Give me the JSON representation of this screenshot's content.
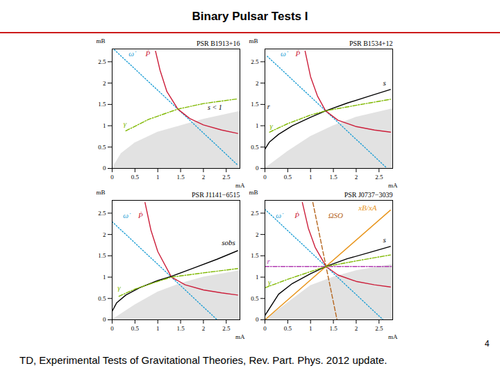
{
  "page": {
    "title": "Binary Pulsar Tests I",
    "footer": "TD, Experimental Tests of Gravitational Theories, Rev. Part. Phys. 2012 update.",
    "page_number": 4
  },
  "chart_data": [
    {
      "type": "line",
      "title": "PSR B1913+16",
      "x_label": "mA",
      "y_label": "mB",
      "xlim": [
        0,
        2.8
      ],
      "ylim": [
        0,
        2.8
      ],
      "xticks": [
        0,
        0.5,
        1,
        1.5,
        2,
        2.5
      ],
      "yticks": [
        0,
        0.5,
        1,
        1.5,
        2,
        2.5
      ],
      "shaded": {
        "x": [
          0,
          0.2,
          0.5,
          1,
          1.5,
          2,
          2.8
        ],
        "y": [
          0,
          0.35,
          0.6,
          0.85,
          1.0,
          1.15,
          1.34
        ]
      },
      "series": [
        {
          "name": "ω̇",
          "color": "#1f9fd5",
          "line_style": "dotted",
          "x": [
            0.05,
            2.75
          ],
          "values": [
            2.78,
            0.08
          ],
          "label_at": [
            0.42,
            2.68
          ]
        },
        {
          "name": "Ṗ",
          "color": "#cc1e3a",
          "line_style": "solid",
          "x": [
            0.95,
            1.05,
            1.2,
            1.44,
            1.7,
            2.0,
            2.4,
            2.75
          ],
          "values": [
            2.75,
            2.3,
            1.8,
            1.39,
            1.17,
            1.02,
            0.9,
            0.82
          ],
          "label_at": [
            0.78,
            2.68
          ]
        },
        {
          "name": "γ",
          "color": "#7fb800",
          "line_style": "dashdot",
          "x": [
            0.3,
            0.8,
            1.44,
            2.0,
            2.75
          ],
          "values": [
            0.88,
            1.15,
            1.39,
            1.52,
            1.63
          ],
          "label_at": [
            0.28,
            1.05
          ]
        }
      ],
      "annotations": [
        {
          "text": "s < 1",
          "x": 2.25,
          "y": 1.42,
          "color": "#000000"
        }
      ]
    },
    {
      "type": "line",
      "title": "PSR B1534+12",
      "x_label": "mA",
      "y_label": "mB",
      "xlim": [
        0,
        2.8
      ],
      "ylim": [
        0,
        2.8
      ],
      "xticks": [
        0,
        0.5,
        1,
        1.5,
        2,
        2.5
      ],
      "yticks": [
        0,
        0.5,
        1,
        1.5,
        2,
        2.5
      ],
      "shaded": {
        "x": [
          0,
          0.5,
          1,
          1.5,
          2,
          2.8
        ],
        "y": [
          0,
          0.4,
          0.75,
          1.0,
          1.2,
          1.4
        ]
      },
      "series": [
        {
          "name": "ω̇",
          "color": "#1f9fd5",
          "line_style": "dotted",
          "x": [
            0.05,
            2.65
          ],
          "values": [
            2.63,
            0.03
          ],
          "label_at": [
            0.4,
            2.68
          ]
        },
        {
          "name": "Ṗ",
          "color": "#cc1e3a",
          "line_style": "solid",
          "x": [
            0.88,
            1.0,
            1.15,
            1.33,
            1.6,
            2.0,
            2.4,
            2.75
          ],
          "values": [
            2.75,
            2.15,
            1.7,
            1.35,
            1.13,
            0.98,
            0.9,
            0.85
          ],
          "label_at": [
            0.72,
            2.68
          ]
        },
        {
          "name": "s",
          "color": "#000000",
          "line_style": "solid",
          "x": [
            0,
            0.1,
            0.3,
            0.6,
            1.0,
            1.33,
            1.8,
            2.3,
            2.75
          ],
          "values": [
            0.45,
            0.62,
            0.8,
            1.0,
            1.2,
            1.35,
            1.53,
            1.7,
            1.85
          ],
          "label_at": [
            2.62,
            2.0
          ]
        },
        {
          "name": "γ",
          "color": "#7fb800",
          "line_style": "dashdot",
          "x": [
            0.1,
            0.5,
            1.0,
            1.33,
            2.0,
            2.75
          ],
          "values": [
            0.85,
            1.05,
            1.25,
            1.35,
            1.48,
            1.62
          ],
          "label_at": [
            0.14,
            1.0
          ]
        }
      ],
      "annotations": [
        {
          "text": "r",
          "x": 0.08,
          "y": 1.45,
          "color": "#000000"
        }
      ]
    },
    {
      "type": "line",
      "title": "PSR J1141−6515",
      "x_label": "mA",
      "y_label": "mB",
      "xlim": [
        0,
        2.8
      ],
      "ylim": [
        0,
        2.8
      ],
      "xticks": [
        0,
        0.5,
        1,
        1.5,
        2,
        2.5
      ],
      "yticks": [
        0,
        0.5,
        1,
        1.5,
        2,
        2.5
      ],
      "shaded": {
        "x": [
          0,
          0.5,
          1,
          1.5,
          2,
          2.8
        ],
        "y": [
          0,
          0.35,
          0.65,
          0.85,
          1.0,
          1.15
        ]
      },
      "series": [
        {
          "name": "ω̇",
          "color": "#1f9fd5",
          "line_style": "dotted",
          "x": [
            0.0,
            2.3
          ],
          "values": [
            2.3,
            0.0
          ],
          "label_at": [
            0.3,
            2.45
          ]
        },
        {
          "name": "Ṗ",
          "color": "#cc1e3a",
          "line_style": "solid",
          "x": [
            0.72,
            0.85,
            1.0,
            1.3,
            1.6,
            2.0,
            2.4,
            2.75
          ],
          "values": [
            2.75,
            2.1,
            1.6,
            1.0,
            0.82,
            0.7,
            0.63,
            0.58
          ],
          "label_at": [
            0.62,
            2.45
          ]
        },
        {
          "name": "sobs",
          "color": "#000000",
          "line_style": "solid",
          "x": [
            0,
            0.1,
            0.3,
            0.6,
            1.0,
            1.3,
            1.8,
            2.3,
            2.75
          ],
          "values": [
            0.2,
            0.4,
            0.58,
            0.75,
            0.92,
            1.02,
            1.22,
            1.42,
            1.62
          ],
          "label_at": [
            2.55,
            1.8
          ]
        },
        {
          "name": "γ",
          "color": "#7fb800",
          "line_style": "dashdot",
          "x": [
            0.15,
            0.5,
            1.0,
            1.3,
            2.0,
            2.75
          ],
          "values": [
            0.55,
            0.72,
            0.9,
            1.0,
            1.1,
            1.2
          ],
          "label_at": [
            0.15,
            0.75
          ]
        }
      ],
      "annotations": []
    },
    {
      "type": "line",
      "title": "PSR J0737−3039",
      "x_label": "mA",
      "y_label": "mB",
      "xlim": [
        0,
        2.8
      ],
      "ylim": [
        0,
        2.8
      ],
      "xticks": [
        0,
        0.5,
        1,
        1.5,
        2,
        2.5
      ],
      "yticks": [
        0,
        0.5,
        1,
        1.5,
        2,
        2.5
      ],
      "shaded": {
        "x": [
          0,
          0.5,
          1,
          1.5,
          2,
          2.8
        ],
        "y": [
          0,
          0.4,
          0.8,
          1.0,
          1.15,
          1.3
        ]
      },
      "series": [
        {
          "name": "ω̇",
          "color": "#1f9fd5",
          "line_style": "dotted",
          "x": [
            0.0,
            2.59
          ],
          "values": [
            2.59,
            0.0
          ],
          "label_at": [
            0.3,
            2.45
          ]
        },
        {
          "name": "Ṗ",
          "color": "#cc1e3a",
          "line_style": "solid",
          "x": [
            0.82,
            0.95,
            1.1,
            1.34,
            1.6,
            2.0,
            2.4,
            2.75
          ],
          "values": [
            2.75,
            2.15,
            1.7,
            1.25,
            1.05,
            0.9,
            0.82,
            0.77
          ],
          "label_at": [
            0.7,
            2.45
          ]
        },
        {
          "name": "ΩSO",
          "color": "#b5651d",
          "line_style": "dashed",
          "x": [
            1.05,
            1.58
          ],
          "values": [
            2.75,
            0.0
          ],
          "label_at": [
            1.55,
            2.45
          ]
        },
        {
          "name": "xB/xA",
          "color": "#e8941a",
          "line_style": "solid",
          "x": [
            0,
            2.75
          ],
          "values": [
            0,
            2.57
          ],
          "label_at": [
            2.25,
            2.62
          ]
        },
        {
          "name": "s",
          "color": "#000000",
          "line_style": "solid",
          "x": [
            0,
            0.3,
            0.6,
            1.0,
            1.34,
            1.8,
            2.3,
            2.75
          ],
          "values": [
            0.1,
            0.6,
            0.85,
            1.08,
            1.25,
            1.43,
            1.58,
            1.72
          ],
          "label_at": [
            2.62,
            1.88
          ]
        },
        {
          "name": "r",
          "color": "#b03ab0",
          "line_style": "dashdot",
          "x": [
            0,
            2.8
          ],
          "values": [
            1.25,
            1.25
          ],
          "label_at": [
            0.08,
            1.36
          ]
        },
        {
          "name": "γ",
          "color": "#7fb800",
          "line_style": "dashdot",
          "x": [
            0,
            0.5,
            1.0,
            1.34,
            2.0,
            2.75
          ],
          "values": [
            0.75,
            0.95,
            1.13,
            1.25,
            1.38,
            1.52
          ],
          "label_at": [
            0.1,
            0.88
          ]
        }
      ],
      "annotations": []
    }
  ]
}
